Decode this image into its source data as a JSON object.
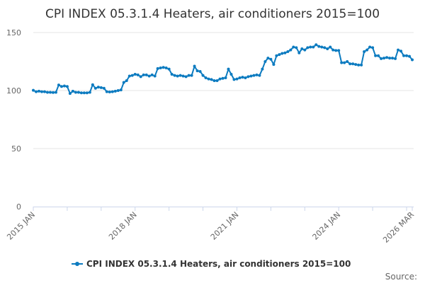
{
  "chart_data": {
    "type": "line",
    "title": "CPI INDEX 05.3.1.4 Heaters, air conditioners 2015=100",
    "xlabel": "",
    "ylabel": "",
    "x_range": [
      "2015 JAN",
      "2026 MAR"
    ],
    "x_frequency": "monthly",
    "x_tick_labels": [
      "2015 JAN",
      "2018 JAN",
      "2021 JAN",
      "2024 JAN",
      "2026 MAR"
    ],
    "ylim": [
      0,
      150
    ],
    "y_tick_labels": [
      "0",
      "50",
      "100",
      "150"
    ],
    "grid": "horizontal",
    "legend_position": "bottom",
    "line_color": "#0c7bc0",
    "series": [
      {
        "name": "CPI INDEX 05.3.1.4 Heaters, air conditioners 2015=100",
        "values": [
          100.2,
          99,
          99.5,
          99,
          99,
          98.5,
          98.5,
          98.3,
          98.5,
          104.8,
          103.5,
          104,
          103.5,
          97.5,
          99.5,
          98.5,
          98.5,
          98,
          98,
          98,
          98.5,
          105,
          102,
          103,
          102.5,
          102,
          99,
          98.8,
          99,
          99.5,
          100,
          100.5,
          107,
          108.5,
          112.5,
          113,
          114,
          113.5,
          112,
          113.5,
          113.5,
          112.5,
          113.5,
          112.5,
          119,
          119.5,
          120,
          119.5,
          118.5,
          114,
          113,
          112.5,
          113,
          112.5,
          112,
          113,
          113,
          121,
          117,
          116.5,
          113,
          111,
          110,
          109.5,
          108.5,
          108.5,
          110,
          110.5,
          111,
          118.5,
          114,
          109.5,
          110,
          111,
          111.5,
          111,
          112,
          112.5,
          113,
          113.5,
          113,
          118.5,
          125,
          128,
          127,
          122.5,
          130,
          131,
          132,
          132.5,
          133.5,
          135,
          137.5,
          137,
          132.5,
          136,
          135,
          137,
          137.5,
          137.5,
          139.5,
          138,
          137.5,
          137,
          136,
          137.5,
          135,
          134.5,
          134.5,
          124,
          124,
          125,
          123,
          123,
          122.5,
          122,
          122,
          133.5,
          135,
          137.5,
          137,
          130,
          130,
          127.5,
          128,
          128.5,
          128,
          128,
          127.5,
          135,
          134,
          130,
          130,
          129.5,
          126.5
        ]
      }
    ],
    "source_label": "Source:"
  }
}
